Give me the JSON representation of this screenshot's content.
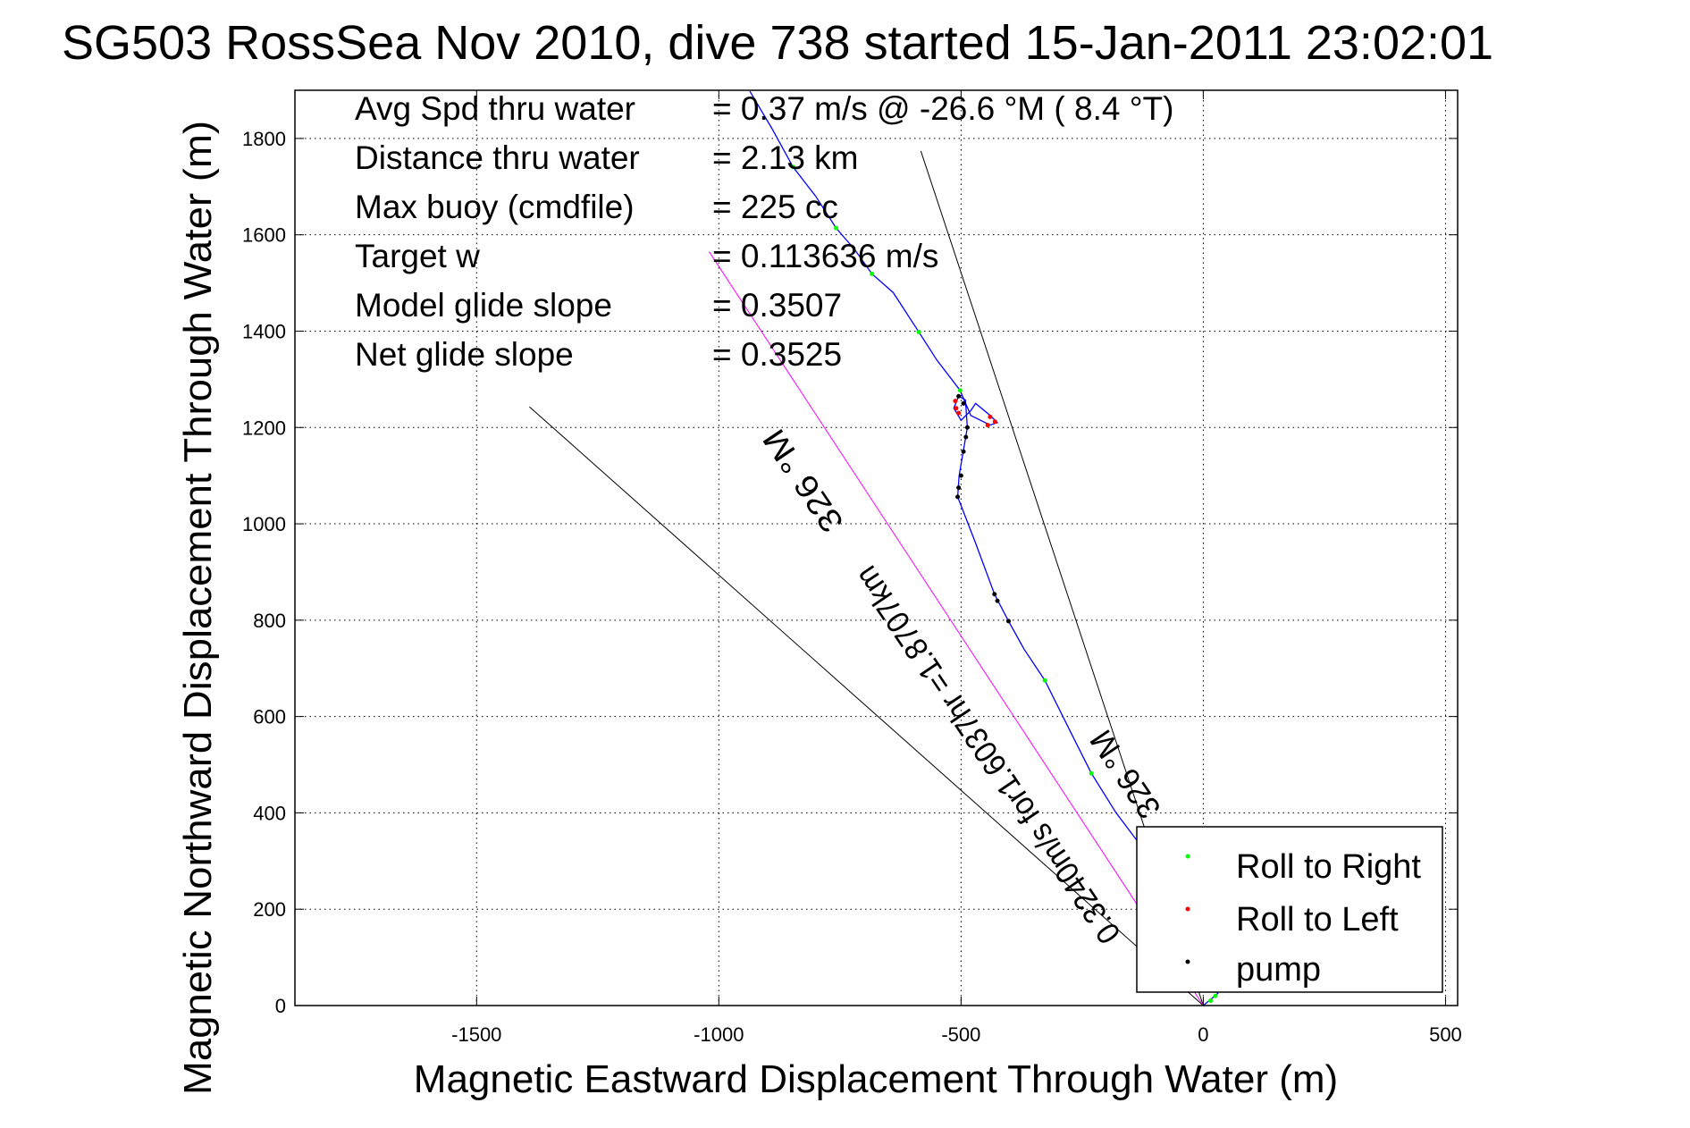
{
  "chart_data": {
    "type": "scatter",
    "title": "SG503 RossSea Nov 2010, dive 738 started 15-Jan-2011 23:02:01",
    "xlabel": "Magnetic Eastward Displacement Through Water (m)",
    "ylabel": "Magnetic Northward Displacement Through Water (m)",
    "xlim": [
      -1875,
      525
    ],
    "ylim": [
      0,
      1900
    ],
    "xticks": [
      -1500,
      -1000,
      -500,
      0,
      500
    ],
    "yticks": [
      0,
      200,
      400,
      600,
      800,
      1000,
      1200,
      1400,
      1600,
      1800
    ],
    "grid": true,
    "legend_placement": "bottom-right",
    "legend": [
      {
        "label": "Roll to Right",
        "color": "#00ff00"
      },
      {
        "label": "Roll to Left",
        "color": "#ff0000"
      },
      {
        "label": "pump",
        "color": "#000000"
      }
    ],
    "track": {
      "color": "#0000ff",
      "points": [
        [
          0,
          0
        ],
        [
          30,
          25
        ],
        [
          -60,
          180
        ],
        [
          -120,
          320
        ],
        [
          -180,
          400
        ],
        [
          -231,
          482
        ],
        [
          -270,
          560
        ],
        [
          -327,
          675
        ],
        [
          -370,
          740
        ],
        [
          -402,
          798
        ],
        [
          -431,
          854
        ],
        [
          -470,
          960
        ],
        [
          -507,
          1056
        ],
        [
          -504,
          1100
        ],
        [
          -487,
          1200
        ],
        [
          -491,
          1257
        ],
        [
          -505,
          1265
        ],
        [
          -515,
          1240
        ],
        [
          -500,
          1215
        ],
        [
          -480,
          1235
        ],
        [
          -470,
          1250
        ],
        [
          -440,
          1225
        ],
        [
          -425,
          1210
        ],
        [
          -440,
          1205
        ],
        [
          -480,
          1225
        ],
        [
          -502,
          1277
        ],
        [
          -550,
          1340
        ],
        [
          -587,
          1398
        ],
        [
          -640,
          1480
        ],
        [
          -684,
          1519
        ],
        [
          -720,
          1570
        ],
        [
          -758,
          1614
        ],
        [
          -800,
          1680
        ],
        [
          -847,
          1741
        ],
        [
          -890,
          1820
        ],
        [
          -936,
          1898
        ]
      ]
    },
    "roll_right": [
      [
        15,
        10
      ],
      [
        25,
        20
      ],
      [
        -231,
        482
      ],
      [
        -327,
        675
      ],
      [
        -502,
        1277
      ],
      [
        -587,
        1398
      ],
      [
        -684,
        1519
      ],
      [
        -758,
        1614
      ],
      [
        -847,
        1741
      ]
    ],
    "roll_left": [
      [
        -512,
        1255
      ],
      [
        -510,
        1240
      ],
      [
        -505,
        1230
      ],
      [
        -440,
        1222
      ],
      [
        -430,
        1212
      ],
      [
        -445,
        1205
      ]
    ],
    "pump": [
      [
        -487,
        1200
      ],
      [
        -490,
        1180
      ],
      [
        -495,
        1150
      ],
      [
        -500,
        1100
      ],
      [
        -505,
        1075
      ],
      [
        -507,
        1056
      ],
      [
        -431,
        854
      ],
      [
        -425,
        840
      ],
      [
        -402,
        798
      ],
      [
        -495,
        1250
      ],
      [
        -505,
        1265
      ]
    ],
    "lines": [
      {
        "color": "#000000",
        "from": [
          -583,
          1774
        ],
        "to": [
          0,
          0
        ]
      },
      {
        "color": "#000000",
        "from": [
          -1391,
          1243
        ],
        "to": [
          0,
          0
        ]
      },
      {
        "color": "#ff00ff",
        "from": [
          -1020,
          1565
        ],
        "to": [
          0,
          0
        ]
      }
    ],
    "annotations": {
      "heading_top": "326 °M",
      "current": "0.3240m/s for1.6037hr =1.8707km",
      "heading_bottom": "326 °M"
    },
    "stats": [
      {
        "label": "Avg Spd thru water",
        "value": "=  0.37 m/s @ -26.6 °M (  8.4 °T)"
      },
      {
        "label": "Distance thru water",
        "value": "=  2.13 km"
      },
      {
        "label": "Max buoy (cmdfile)",
        "value": "= 225 cc"
      },
      {
        "label": "Target w",
        "value": "= 0.113636 m/s"
      },
      {
        "label": "Model glide slope",
        "value": "= 0.3507"
      },
      {
        "label": "Net glide slope",
        "value": "= 0.3525"
      }
    ]
  }
}
